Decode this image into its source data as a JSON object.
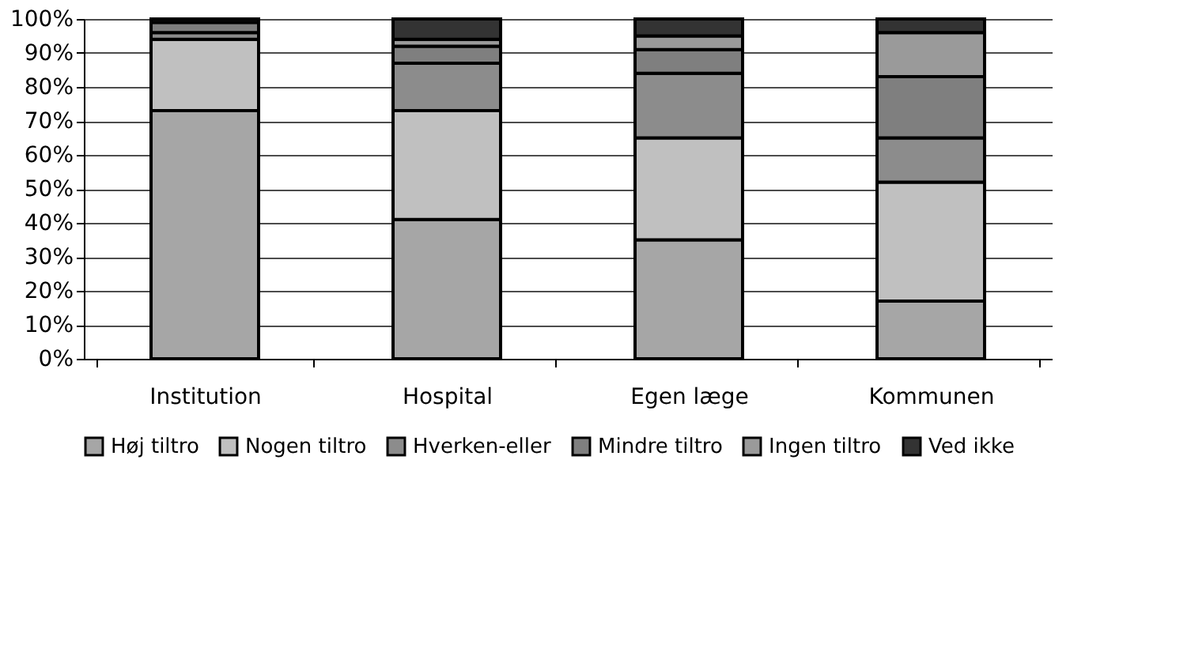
{
  "chart_data": {
    "type": "bar",
    "stacked": true,
    "categories": [
      "Institution",
      "Hospital",
      "Egen læge",
      "Kommunen"
    ],
    "series": [
      {
        "name": "Høj tiltro",
        "color": "#a6a6a6",
        "values": [
          73,
          41,
          35,
          17
        ]
      },
      {
        "name": "Nogen tiltro",
        "color": "#c0c0c0",
        "values": [
          21,
          32,
          30,
          35
        ]
      },
      {
        "name": "Hverken-eller",
        "color": "#8c8c8c",
        "values": [
          2,
          14,
          19,
          13
        ]
      },
      {
        "name": "Mindre tiltro",
        "color": "#7f7f7f",
        "values": [
          3,
          5,
          7,
          18
        ]
      },
      {
        "name": "Ingen tiltro",
        "color": "#9a9a9a",
        "values": [
          0,
          2,
          4,
          13
        ]
      },
      {
        "name": "Ved ikke",
        "color": "#333333",
        "values": [
          1,
          6,
          5,
          4
        ]
      }
    ],
    "ylim": [
      0,
      100
    ],
    "yticks": [
      {
        "value": 0,
        "label": "0%"
      },
      {
        "value": 10,
        "label": "10%"
      },
      {
        "value": 20,
        "label": "20%"
      },
      {
        "value": 30,
        "label": "30%"
      },
      {
        "value": 40,
        "label": "40%"
      },
      {
        "value": 50,
        "label": "50%"
      },
      {
        "value": 60,
        "label": "60%"
      },
      {
        "value": 70,
        "label": "70%"
      },
      {
        "value": 80,
        "label": "80%"
      },
      {
        "value": 90,
        "label": "90%"
      },
      {
        "value": 100,
        "label": "100%"
      }
    ],
    "grid": "y",
    "legend": "bottom"
  }
}
